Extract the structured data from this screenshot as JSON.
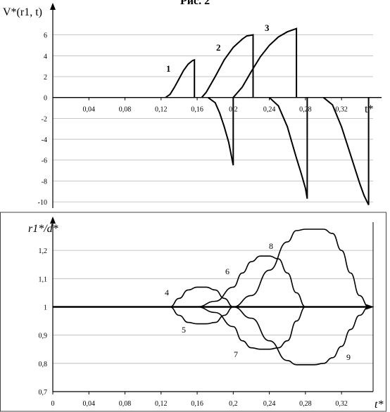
{
  "header_fragment": "Рис. 2",
  "chart_data": [
    {
      "type": "line",
      "ylabel": "V*(r1, t)",
      "xlabel": "t*",
      "x_ticks": [
        "0,04",
        "0,08",
        "0,12",
        "0,16",
        "0,2",
        "0,24",
        "0,28",
        "0,32"
      ],
      "y_ticks": [
        -10,
        -8,
        -6,
        -4,
        -2,
        0,
        2,
        4,
        6
      ],
      "xlim": [
        0,
        0.355
      ],
      "ylim": [
        -10.6,
        8.4
      ],
      "series": [
        {
          "name": "1",
          "x": [
            0.125,
            0.13,
            0.135,
            0.14,
            0.145,
            0.15,
            0.155,
            0.157,
            0.157
          ],
          "y": [
            0,
            0.3,
            1.0,
            1.8,
            2.6,
            3.2,
            3.55,
            3.6,
            0
          ]
        },
        {
          "name": "2",
          "x": [
            0.165,
            0.17,
            0.18,
            0.19,
            0.2,
            0.21,
            0.215,
            0.222,
            0.222
          ],
          "y": [
            0,
            0.5,
            2.0,
            3.6,
            4.8,
            5.6,
            5.9,
            6.0,
            0
          ]
        },
        {
          "name": "3",
          "x": [
            0.2,
            0.21,
            0.22,
            0.23,
            0.24,
            0.25,
            0.26,
            0.27,
            0.27
          ],
          "y": [
            0,
            1.0,
            2.5,
            3.9,
            5.0,
            5.8,
            6.3,
            6.6,
            0
          ]
        },
        {
          "x": [
            0.172,
            0.18,
            0.185,
            0.19,
            0.195,
            0.2,
            0.2
          ],
          "y": [
            0,
            -0.5,
            -1.5,
            -2.8,
            -4.3,
            -6.5,
            0
          ]
        },
        {
          "x": [
            0.24,
            0.25,
            0.26,
            0.265,
            0.27,
            0.275,
            0.28,
            0.282,
            0.282
          ],
          "y": [
            0,
            -0.8,
            -2.8,
            -4.3,
            -5.8,
            -7.2,
            -8.7,
            -9.7,
            0
          ]
        },
        {
          "x": [
            0.3,
            0.31,
            0.32,
            0.33,
            0.34,
            0.345,
            0.35,
            0.35
          ],
          "y": [
            0,
            -0.7,
            -2.8,
            -5.5,
            -8.2,
            -9.4,
            -10.3,
            0
          ]
        }
      ]
    },
    {
      "type": "line",
      "ylabel": "r1*/d*",
      "xlabel": "t*",
      "x_ticks": [
        "0",
        "0,04",
        "0,08",
        "0,12",
        "0,16",
        "0,2",
        "0,24",
        "0,28",
        "0,32"
      ],
      "y_ticks": [
        "0,7",
        "0,8",
        "0,9",
        "1",
        "1,1",
        "1,2"
      ],
      "xlim": [
        0,
        0.355
      ],
      "ylim": [
        0.7,
        1.295
      ],
      "series": [
        {
          "name": "4",
          "x": [
            0,
            0.13,
            0.14,
            0.15,
            0.16,
            0.17,
            0.18,
            0.19,
            0.2
          ],
          "y": [
            1,
            1,
            1.03,
            1.06,
            1.07,
            1.07,
            1.06,
            1.03,
            1.0
          ]
        },
        {
          "name": "5",
          "x": [
            0,
            0.13,
            0.14,
            0.15,
            0.16,
            0.17,
            0.18,
            0.19,
            0.2
          ],
          "y": [
            1,
            1,
            0.97,
            0.945,
            0.94,
            0.94,
            0.945,
            0.97,
            1.0
          ]
        },
        {
          "name": "6",
          "x": [
            0,
            0.16,
            0.18,
            0.2,
            0.21,
            0.22,
            0.23,
            0.24,
            0.25,
            0.26,
            0.27,
            0.28
          ],
          "y": [
            1,
            1,
            1.02,
            1.07,
            1.12,
            1.16,
            1.18,
            1.18,
            1.17,
            1.12,
            1.05,
            1.0
          ]
        },
        {
          "name": "7",
          "x": [
            0,
            0.16,
            0.18,
            0.2,
            0.21,
            0.22,
            0.23,
            0.24,
            0.25,
            0.26,
            0.27,
            0.28
          ],
          "y": [
            1,
            1,
            0.98,
            0.93,
            0.88,
            0.855,
            0.85,
            0.85,
            0.855,
            0.88,
            0.95,
            1.0
          ]
        },
        {
          "name": "8",
          "x": [
            0,
            0.2,
            0.22,
            0.24,
            0.26,
            0.27,
            0.28,
            0.29,
            0.3,
            0.31,
            0.32,
            0.33,
            0.34,
            0.35
          ],
          "y": [
            1,
            1,
            1.04,
            1.13,
            1.23,
            1.27,
            1.275,
            1.275,
            1.275,
            1.26,
            1.2,
            1.12,
            1.04,
            1.0
          ]
        },
        {
          "name": "9",
          "x": [
            0,
            0.2,
            0.22,
            0.24,
            0.26,
            0.27,
            0.28,
            0.29,
            0.3,
            0.31,
            0.32,
            0.33,
            0.34,
            0.35
          ],
          "y": [
            1,
            1,
            0.96,
            0.88,
            0.81,
            0.795,
            0.795,
            0.795,
            0.8,
            0.82,
            0.86,
            0.92,
            0.97,
            1.0
          ]
        }
      ]
    }
  ]
}
